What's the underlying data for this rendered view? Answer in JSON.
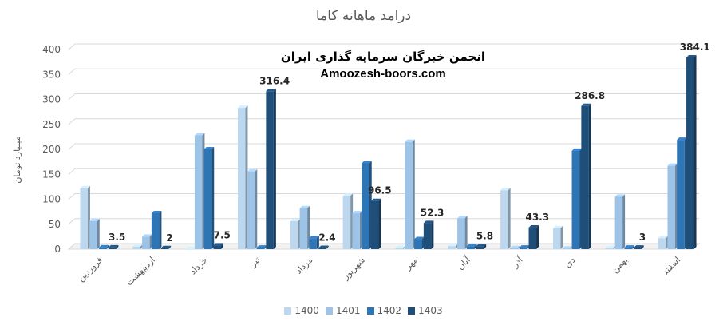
{
  "chart_data": {
    "type": "bar",
    "title": "درامد ماهانه کاما",
    "ylabel": "میلیارد تومان",
    "xlabel": "",
    "ylim": [
      0,
      400
    ],
    "yticks": [
      0,
      50,
      100,
      150,
      200,
      250,
      300,
      350,
      400
    ],
    "grid": true,
    "legend_position": "bottom",
    "categories": [
      "فروردین",
      "اردیبهشت",
      "خرداد",
      "تیر",
      "مرداد",
      "شهریور",
      "مهر",
      "آبان",
      "آذر",
      "دی",
      "بهمن",
      "اسفند"
    ],
    "series": [
      {
        "name": "1400",
        "color": "#bdd7ee",
        "values": [
          122,
          5,
          0,
          283,
          56,
          107,
          2,
          6,
          118,
          42,
          2,
          22
        ]
      },
      {
        "name": "1401",
        "color": "#9dc3e6",
        "values": [
          56,
          25,
          228,
          155,
          82,
          72,
          215,
          62,
          2,
          1,
          105,
          167
        ]
      },
      {
        "name": "1402",
        "color": "#2e75b6",
        "values": [
          3.5,
          72,
          200,
          3,
          22,
          172,
          20,
          5.8,
          3,
          197,
          3,
          219
        ]
      },
      {
        "name": "1403",
        "color": "#1f4e79",
        "values": [
          3.5,
          2,
          7.5,
          316.4,
          2.4,
          96.5,
          52.3,
          5.8,
          43.3,
          286.8,
          3,
          384.1
        ]
      }
    ],
    "data_labels": [
      "3.5",
      "2",
      "7.5",
      "316.4",
      "2.4",
      "96.5",
      "52.3",
      "5.8",
      "43.3",
      "286.8",
      "3",
      "384.1"
    ]
  },
  "watermark": {
    "line1": "انجمن خبرگان سرمایه گذاری ایران",
    "line2": "Amoozesh-boors.com"
  }
}
